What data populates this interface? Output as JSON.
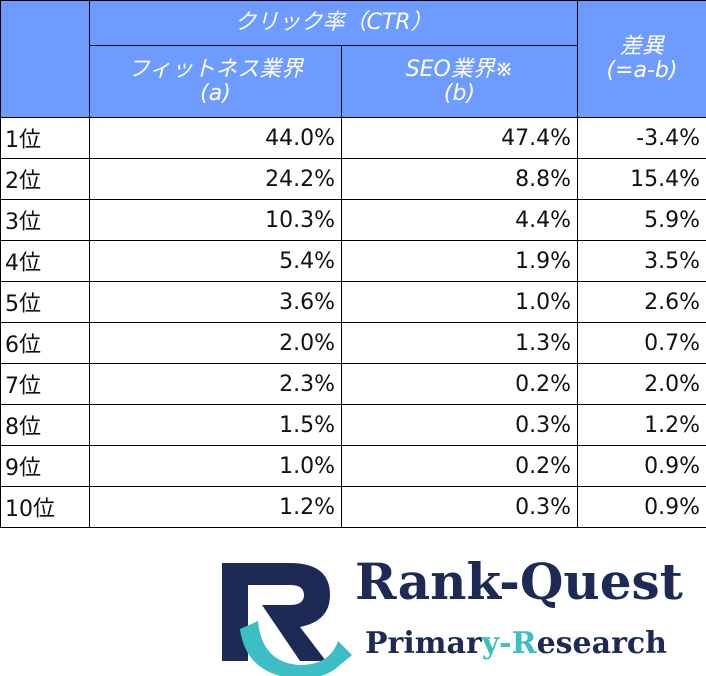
{
  "table": {
    "group": "クリック率（CTR）",
    "columns": [
      {
        "name": "フィットネス業界",
        "sub": "(a)"
      },
      {
        "name": "SEO業界※",
        "sub": "(b)"
      },
      {
        "name": "差異",
        "sub": "(=a-b)"
      }
    ],
    "rows": [
      [
        "1位",
        "44.0%",
        "47.4%",
        "-3.4%"
      ],
      [
        "2位",
        "24.2%",
        "8.8%",
        "15.4%"
      ],
      [
        "3位",
        "10.3%",
        "4.4%",
        "5.9%"
      ],
      [
        "4位",
        "5.4%",
        "1.9%",
        "3.5%"
      ],
      [
        "5位",
        "3.6%",
        "1.0%",
        "2.6%"
      ],
      [
        "6位",
        "2.0%",
        "1.3%",
        "0.7%"
      ],
      [
        "7位",
        "2.3%",
        "0.2%",
        "2.0%"
      ],
      [
        "8位",
        "1.5%",
        "0.3%",
        "1.2%"
      ],
      [
        "9位",
        "1.0%",
        "0.2%",
        "0.9%"
      ],
      [
        "10位",
        "1.2%",
        "0.3%",
        "0.9%"
      ]
    ]
  },
  "logo": {
    "name": "Rank-Quest",
    "tagline": [
      "Primar",
      "y-R",
      "esearch"
    ]
  }
}
